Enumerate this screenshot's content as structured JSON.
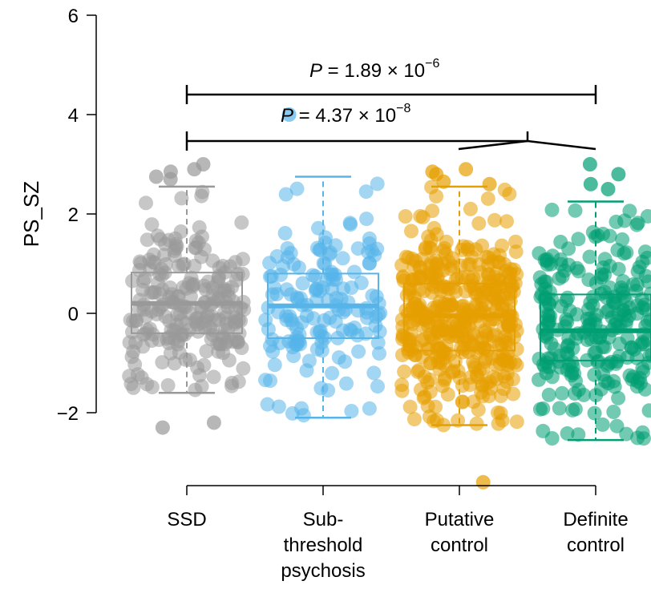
{
  "chart_data": {
    "type": "box",
    "ylabel": "PS_SZ",
    "ylim": [
      -3.6,
      6
    ],
    "yticks": [
      -2,
      0,
      2,
      4,
      6
    ],
    "ytick_labels": [
      "−2",
      "0",
      "2",
      "4",
      "6"
    ],
    "categories": [
      {
        "name": "SSD",
        "label_lines": [
          "SSD"
        ]
      },
      {
        "name": "Sub-threshold psychosis",
        "label_lines": [
          "Sub-",
          "threshold",
          "psychosis"
        ]
      },
      {
        "name": "Putative control",
        "label_lines": [
          "Putative",
          "control"
        ]
      },
      {
        "name": "Definite control",
        "label_lines": [
          "Definite",
          "control"
        ]
      }
    ],
    "series": [
      {
        "name": "SSD",
        "color": "#999999",
        "n_points": 230,
        "whisker_low": -1.6,
        "q1": -0.4,
        "median": 0.2,
        "q3": 0.82,
        "whisker_high": 2.55,
        "outliers": [
          -2.2,
          -2.3,
          2.7,
          2.75,
          2.85,
          2.9,
          3.0
        ]
      },
      {
        "name": "Sub-threshold psychosis",
        "color": "#56B4E9",
        "n_points": 160,
        "whisker_low": -2.1,
        "q1": -0.5,
        "median": 0.15,
        "q3": 0.8,
        "whisker_high": 2.75,
        "outliers": [
          4.0
        ]
      },
      {
        "name": "Putative control",
        "color": "#E69F00",
        "n_points": 420,
        "whisker_low": -2.25,
        "q1": -0.75,
        "median": -0.05,
        "q3": 0.6,
        "whisker_high": 2.55,
        "outliers": [
          -3.4,
          2.6,
          2.65,
          2.8,
          2.85,
          2.9
        ]
      },
      {
        "name": "Definite control",
        "color": "#009E73",
        "n_points": 250,
        "whisker_low": -2.55,
        "q1": -0.95,
        "median": -0.35,
        "q3": 0.38,
        "whisker_high": 2.25,
        "outliers": [
          2.5,
          2.6,
          2.8,
          3.0
        ]
      }
    ],
    "annotations": [
      {
        "text": "P = 1.89 × 10",
        "p": "P",
        "rest": " = 1.89 × 10",
        "exp": "−6",
        "from": "SSD",
        "to": "Definite control"
      },
      {
        "text": "P = 4.37 × 10",
        "p": "P",
        "rest": " = 4.37 × 10",
        "exp": "−8",
        "from": "SSD",
        "to": "Putative control and Definite control"
      }
    ]
  }
}
